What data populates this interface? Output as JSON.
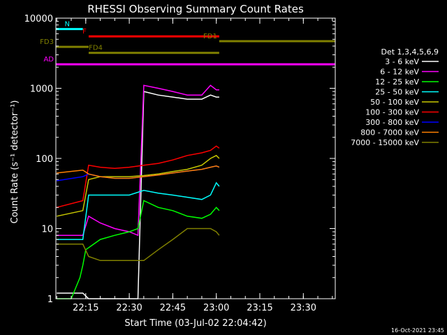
{
  "chart_data": {
    "type": "line",
    "title": "RHESSI Observing Summary Count Rates",
    "xlabel": "Start Time (03-Jul-02 22:04:42)",
    "ylabel": "Count Rate (s⁻¹ detector⁻¹)",
    "y_scale": "log",
    "ylim": [
      1,
      10000
    ],
    "xlim": [
      "22:04:42",
      "23:41:00"
    ],
    "x_ticks": [
      "22:15",
      "22:30",
      "22:45",
      "23:00",
      "23:15",
      "23:30"
    ],
    "y_ticks": [
      "1",
      "10",
      "100",
      "1000",
      "10000"
    ],
    "legend_title": "Det 1,3,4,5,6,9",
    "legend_position": "right",
    "footer": "16-Oct-2021 23:45",
    "series": [
      {
        "name": "3 - 6 keV",
        "color": "#ffffff",
        "x": [
          "22:05",
          "22:14",
          "22:16",
          "22:20",
          "22:25",
          "22:30",
          "22:33",
          "22:35",
          "22:40",
          "22:45",
          "22:50",
          "22:55",
          "22:58",
          "23:00",
          "23:01"
        ],
        "y": [
          1.2,
          1.2,
          1,
          1,
          1,
          1,
          1,
          900,
          800,
          750,
          700,
          700,
          800,
          750,
          750
        ]
      },
      {
        "name": "6 - 12 keV",
        "color": "#ff00ff",
        "x": [
          "22:05",
          "22:10",
          "22:14",
          "22:16",
          "22:20",
          "22:25",
          "22:30",
          "22:33",
          "22:35",
          "22:40",
          "22:45",
          "22:50",
          "22:55",
          "22:58",
          "23:00",
          "23:01"
        ],
        "y": [
          8,
          8,
          8,
          15,
          12,
          10,
          9,
          8,
          1100,
          1000,
          900,
          800,
          800,
          1100,
          950,
          950
        ]
      },
      {
        "name": "12 - 25 keV",
        "color": "#00ff00",
        "x": [
          "22:05",
          "22:10",
          "22:13",
          "22:14",
          "22:15",
          "22:20",
          "22:25",
          "22:30",
          "22:33",
          "22:35",
          "22:40",
          "22:45",
          "22:50",
          "22:55",
          "22:58",
          "23:00",
          "23:01"
        ],
        "y": [
          1,
          1,
          2,
          3,
          5,
          7,
          8,
          9,
          10,
          25,
          20,
          18,
          15,
          14,
          16,
          20,
          18
        ]
      },
      {
        "name": "25 - 50 keV",
        "color": "#00ffff",
        "x": [
          "22:05",
          "22:14",
          "22:16",
          "22:20",
          "22:25",
          "22:30",
          "22:35",
          "22:40",
          "22:45",
          "22:50",
          "22:55",
          "22:58",
          "23:00",
          "23:01"
        ],
        "y": [
          7,
          7,
          30,
          30,
          30,
          30,
          35,
          32,
          30,
          28,
          26,
          30,
          45,
          40
        ]
      },
      {
        "name": "50 - 100 keV",
        "color": "#c8c800",
        "x": [
          "22:05",
          "22:14",
          "22:16",
          "22:20",
          "22:25",
          "22:30",
          "22:35",
          "22:40",
          "22:45",
          "22:50",
          "22:55",
          "22:58",
          "23:00",
          "23:01"
        ],
        "y": [
          15,
          18,
          50,
          55,
          55,
          55,
          57,
          60,
          65,
          70,
          80,
          100,
          110,
          100
        ]
      },
      {
        "name": "100 - 300 keV",
        "color": "#ff0000",
        "x": [
          "22:05",
          "22:14",
          "22:16",
          "22:20",
          "22:25",
          "22:30",
          "22:35",
          "22:40",
          "22:45",
          "22:50",
          "22:55",
          "22:58",
          "23:00",
          "23:01"
        ],
        "y": [
          20,
          25,
          80,
          75,
          72,
          75,
          80,
          85,
          95,
          110,
          120,
          130,
          150,
          140
        ]
      },
      {
        "name": "300 - 800 keV",
        "color": "#0000ff",
        "x": [
          "22:05",
          "22:14",
          "22:16",
          "22:20",
          "22:25",
          "22:30",
          "22:35",
          "22:40",
          "22:45",
          "22:50",
          "22:55",
          "22:58",
          "23:00",
          "23:01"
        ],
        "y": [
          48,
          55,
          60,
          55,
          52,
          52,
          55,
          58,
          62,
          66,
          70,
          75,
          78,
          75
        ]
      },
      {
        "name": "800 - 7000 keV",
        "color": "#ff8000",
        "x": [
          "22:05",
          "22:14",
          "22:16",
          "22:20",
          "22:25",
          "22:30",
          "22:35",
          "22:40",
          "22:45",
          "22:50",
          "22:55",
          "22:58",
          "23:00",
          "23:01"
        ],
        "y": [
          62,
          68,
          60,
          55,
          52,
          52,
          55,
          58,
          62,
          66,
          70,
          75,
          78,
          75
        ]
      },
      {
        "name": "7000 - 15000 keV",
        "color": "#808000",
        "x": [
          "22:05",
          "22:14",
          "22:16",
          "22:20",
          "22:25",
          "22:30",
          "22:35",
          "22:40",
          "22:45",
          "22:50",
          "22:55",
          "22:58",
          "23:00",
          "23:01"
        ],
        "y": [
          6,
          6,
          4,
          3.5,
          3.5,
          3.5,
          3.5,
          5,
          7,
          10,
          10,
          10,
          9,
          8
        ]
      }
    ],
    "annotations": [
      {
        "label": "N",
        "color": "#00ffff",
        "y": 7000,
        "x_start": "22:04:42",
        "x_end": "22:14:00"
      },
      {
        "label": "F",
        "color": "#ff0000",
        "y": 5500,
        "x_start": "22:16:00",
        "x_end": "23:01:00"
      },
      {
        "label": "FD1",
        "color": "#808000",
        "y": 4700,
        "x_start": "23:01:00",
        "x_end": "23:41:00"
      },
      {
        "label": "FD3",
        "color": "#808000",
        "y": 3900,
        "x_start": "22:04:42",
        "x_end": "22:16:00"
      },
      {
        "label": "FD4",
        "color": "#808000",
        "y": 3200,
        "x_start": "22:16:00",
        "x_end": "23:01:00"
      },
      {
        "label": "AD",
        "color": "#ff00ff",
        "y": 2200,
        "x_start": "22:04:42",
        "x_end": "23:41:00"
      }
    ]
  }
}
